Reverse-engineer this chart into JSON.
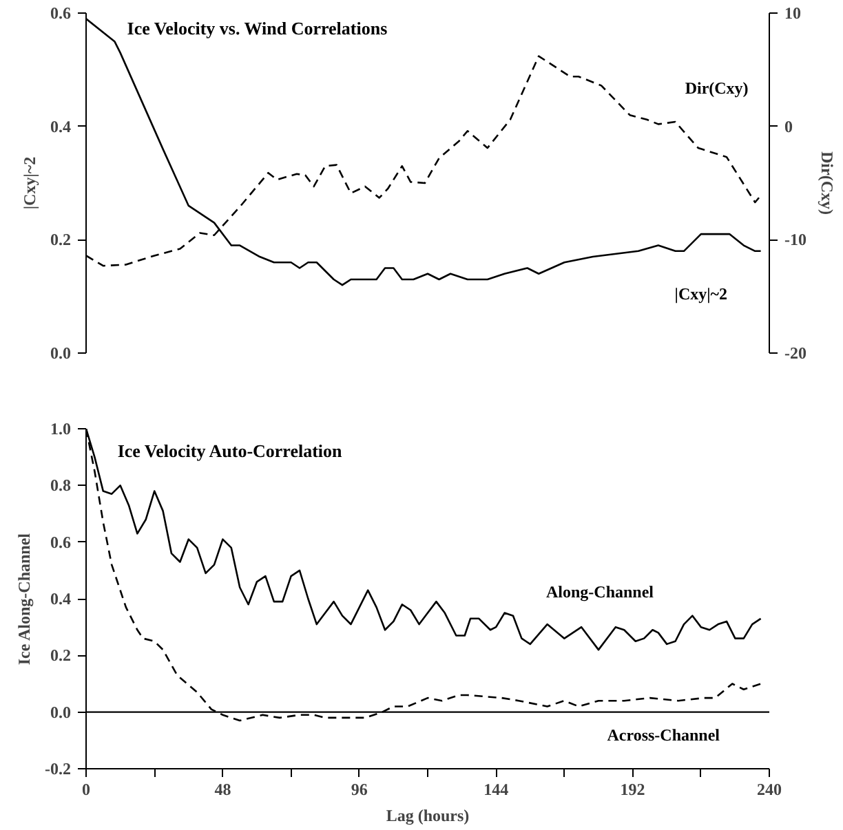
{
  "chart_data": [
    {
      "type": "line",
      "title": "Ice Velocity vs. Wind Correlations",
      "ylabel": "|Cxy|~2",
      "y2label": "Dir(Cxy)",
      "xlim": [
        0,
        240
      ],
      "ylim": [
        0,
        0.6
      ],
      "yticks": [
        {
          "value": 0,
          "label": "0.0"
        },
        {
          "value": 0.2,
          "label": "0.2"
        },
        {
          "value": 0.4,
          "label": "0.4"
        },
        {
          "value": 0.6,
          "label": "0.6"
        }
      ],
      "y2lim": [
        -20,
        10
      ],
      "y2ticks": [
        -20,
        -10,
        0,
        10
      ],
      "tick_labels": "y",
      "grid": false,
      "series": [
        {
          "name": "|Cxy|~2",
          "color": "#000000",
          "line_style": "solid",
          "x": [
            0,
            10,
            12,
            27,
            36,
            42,
            45,
            51,
            54,
            61,
            66,
            72,
            75,
            78,
            81,
            87,
            90,
            93,
            98,
            102,
            105,
            108,
            111,
            115,
            120,
            124,
            128,
            134,
            141,
            147,
            155,
            159,
            168,
            178,
            194,
            201,
            207,
            210,
            216,
            222,
            226,
            231,
            235,
            237
          ],
          "values": [
            0.59,
            0.55,
            0.53,
            0.36,
            0.26,
            0.24,
            0.23,
            0.19,
            0.19,
            0.17,
            0.16,
            0.16,
            0.15,
            0.16,
            0.16,
            0.13,
            0.12,
            0.13,
            0.13,
            0.13,
            0.15,
            0.15,
            0.13,
            0.13,
            0.14,
            0.13,
            0.14,
            0.13,
            0.13,
            0.14,
            0.15,
            0.14,
            0.16,
            0.17,
            0.18,
            0.19,
            0.18,
            0.18,
            0.21,
            0.21,
            0.21,
            0.19,
            0.18,
            0.18
          ]
        },
        {
          "name": "Dir(Cxy)",
          "color": "#000000",
          "line_style": "dashed",
          "axis": "y2",
          "x": [
            0,
            6,
            14,
            24,
            33,
            40,
            45,
            54,
            64,
            67,
            74,
            77,
            80,
            84,
            88,
            93,
            98,
            103,
            106,
            111,
            114,
            119,
            124,
            131,
            134,
            141,
            149,
            159,
            170,
            173,
            181,
            191,
            197,
            201,
            207,
            215,
            225,
            231,
            235,
            237
          ],
          "values": [
            -11.4,
            -12.3,
            -12.2,
            -11.4,
            -10.8,
            -9.4,
            -9.6,
            -7.1,
            -4.1,
            -4.7,
            -4.2,
            -4.3,
            -5.3,
            -3.5,
            -3.4,
            -5.9,
            -5.3,
            -6.3,
            -5.5,
            -3.5,
            -4.9,
            -5.0,
            -2.8,
            -1.3,
            -0.4,
            -1.9,
            0.6,
            6.2,
            4.4,
            4.4,
            3.6,
            1.0,
            0.6,
            0.2,
            0.4,
            -1.9,
            -2.7,
            -5.1,
            -6.7,
            -6.1
          ]
        }
      ]
    },
    {
      "type": "line",
      "title": "Ice Velocity Auto-Correlation",
      "xlabel": "Lag (hours)",
      "ylabel": "Ice Along-Channel",
      "xlim": [
        0,
        240
      ],
      "ylim": [
        -0.2,
        1.0
      ],
      "xticks": [
        0,
        {
          "value": 24,
          "label": null
        },
        48,
        {
          "value": 72,
          "label": null
        },
        96,
        {
          "value": 120,
          "label": null
        },
        144,
        {
          "value": 168,
          "label": null
        },
        192,
        {
          "value": 216,
          "label": null
        },
        240
      ],
      "yticks": [
        {
          "value": -0.2,
          "label": "-0.2"
        },
        {
          "value": 0,
          "label": "0.0"
        },
        {
          "value": 0.2,
          "label": "0.2"
        },
        {
          "value": 0.4,
          "label": "0.4"
        },
        {
          "value": 0.6,
          "label": "0.6"
        },
        {
          "value": 0.8,
          "label": "0.8"
        },
        {
          "value": 1.0,
          "label": "1.0"
        }
      ],
      "grid": false,
      "ref_lines": [
        {
          "axis": "y",
          "value": 0,
          "color": "#000000",
          "line_style": "solid"
        }
      ],
      "series": [
        {
          "name": "Along-Channel",
          "color": "#000000",
          "line_style": "solid",
          "x": [
            0,
            3,
            6,
            9,
            12,
            15,
            18,
            21,
            24,
            27,
            30,
            33,
            36,
            39,
            42,
            45,
            48,
            51,
            54,
            57,
            60,
            63,
            66,
            69,
            72,
            75,
            78,
            81,
            84,
            87,
            90,
            93,
            96,
            99,
            102,
            105,
            108,
            111,
            114,
            117,
            120,
            123,
            126,
            130,
            133,
            135,
            138,
            142,
            144,
            147,
            150,
            153,
            156,
            162,
            168,
            174,
            180,
            186,
            189,
            193,
            196,
            199,
            201,
            204,
            207,
            210,
            213,
            216,
            219,
            222,
            225,
            228,
            231,
            234,
            237
          ],
          "values": [
            1.0,
            0.9,
            0.78,
            0.77,
            0.8,
            0.73,
            0.63,
            0.68,
            0.78,
            0.71,
            0.56,
            0.53,
            0.61,
            0.58,
            0.49,
            0.52,
            0.61,
            0.58,
            0.44,
            0.38,
            0.46,
            0.48,
            0.39,
            0.39,
            0.48,
            0.5,
            0.4,
            0.31,
            0.35,
            0.39,
            0.34,
            0.31,
            0.37,
            0.43,
            0.37,
            0.29,
            0.32,
            0.38,
            0.36,
            0.31,
            0.35,
            0.39,
            0.35,
            0.27,
            0.27,
            0.33,
            0.33,
            0.29,
            0.3,
            0.35,
            0.34,
            0.26,
            0.24,
            0.31,
            0.26,
            0.3,
            0.22,
            0.3,
            0.29,
            0.25,
            0.26,
            0.29,
            0.28,
            0.24,
            0.25,
            0.31,
            0.34,
            0.3,
            0.29,
            0.31,
            0.32,
            0.26,
            0.26,
            0.31,
            0.33
          ]
        },
        {
          "name": "Across-Channel",
          "color": "#000000",
          "line_style": "dashed",
          "x": [
            0,
            3,
            6,
            9,
            14,
            18,
            20,
            24,
            27,
            32,
            39,
            44,
            48,
            54,
            62,
            68,
            75,
            80,
            84,
            92,
            98,
            104,
            108,
            113,
            120,
            125,
            131,
            134,
            146,
            152,
            162,
            168,
            173,
            180,
            189,
            198,
            208,
            217,
            221,
            227,
            231,
            237
          ],
          "values": [
            1.0,
            0.85,
            0.67,
            0.52,
            0.37,
            0.29,
            0.26,
            0.25,
            0.22,
            0.13,
            0.07,
            0.01,
            -0.01,
            -0.03,
            -0.01,
            -0.02,
            -0.01,
            -0.01,
            -0.02,
            -0.02,
            -0.02,
            0.0,
            0.02,
            0.02,
            0.05,
            0.04,
            0.06,
            0.06,
            0.05,
            0.04,
            0.02,
            0.04,
            0.02,
            0.04,
            0.04,
            0.05,
            0.04,
            0.05,
            0.05,
            0.1,
            0.08,
            0.1
          ]
        }
      ]
    }
  ]
}
